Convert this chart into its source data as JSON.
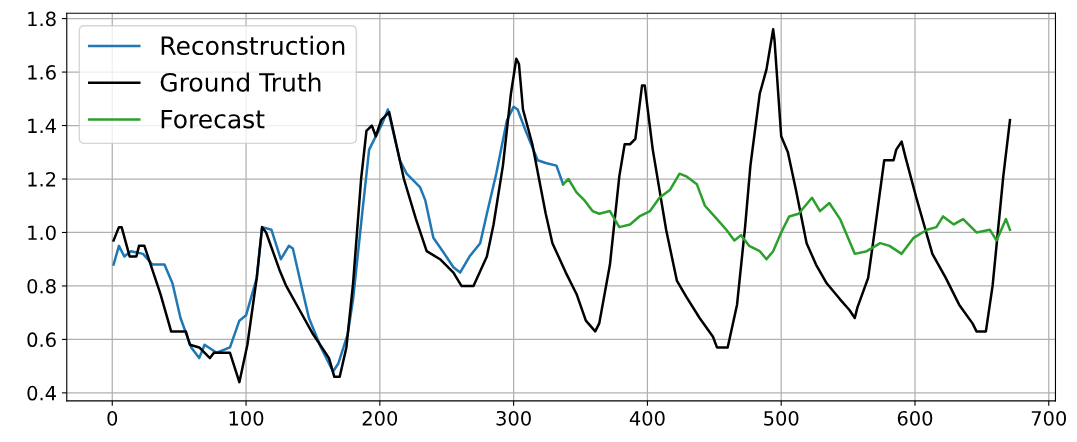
{
  "chart_data": {
    "type": "line",
    "xlim": [
      -34,
      705
    ],
    "ylim": [
      0.37,
      1.82
    ],
    "xticks": [
      0,
      100,
      200,
      300,
      400,
      500,
      600,
      700
    ],
    "yticks": [
      {
        "value": 0.4,
        "label": "0.4"
      },
      {
        "value": 0.6,
        "label": "0.6"
      },
      {
        "value": 0.8,
        "label": "0.8"
      },
      {
        "value": 1.0,
        "label": "1.0"
      },
      {
        "value": 1.2,
        "label": "1.2"
      },
      {
        "value": 1.4,
        "label": "1.4"
      },
      {
        "value": 1.6,
        "label": "1.6"
      },
      {
        "value": 1.8,
        "label": "1.8"
      }
    ],
    "grid": true,
    "legend": "top left",
    "line_style": "solid",
    "series": [
      {
        "name": "Reconstruction",
        "color": "#1f77b4",
        "x": [
          1,
          5,
          9,
          14,
          23,
          30,
          39,
          45,
          51,
          59,
          65,
          69,
          78,
          88,
          95,
          100,
          108,
          112,
          119,
          126,
          132,
          135,
          140,
          147,
          156,
          165,
          169,
          176,
          180,
          187,
          192,
          202,
          206,
          215,
          220,
          230,
          234,
          240,
          247,
          255,
          260,
          267,
          275,
          280,
          287,
          295,
          300,
          303,
          309,
          318,
          324,
          332,
          337
        ],
        "values": [
          0.88,
          0.95,
          0.91,
          0.93,
          0.92,
          0.88,
          0.88,
          0.81,
          0.68,
          0.57,
          0.53,
          0.58,
          0.55,
          0.57,
          0.67,
          0.69,
          0.83,
          1.02,
          1.01,
          0.9,
          0.95,
          0.94,
          0.83,
          0.68,
          0.57,
          0.48,
          0.51,
          0.62,
          0.75,
          1.08,
          1.31,
          1.41,
          1.46,
          1.27,
          1.22,
          1.17,
          1.12,
          0.98,
          0.93,
          0.87,
          0.85,
          0.91,
          0.96,
          1.07,
          1.22,
          1.42,
          1.47,
          1.46,
          1.38,
          1.27,
          1.26,
          1.25,
          1.18
        ]
      },
      {
        "name": "Ground Truth",
        "color": "#000000",
        "x": [
          1,
          5,
          7,
          13,
          18,
          20,
          24,
          36,
          44,
          55,
          58,
          65,
          73,
          76,
          88,
          95,
          101,
          108,
          112,
          115,
          125,
          130,
          140,
          150,
          162,
          166,
          170,
          175,
          180,
          186,
          190,
          194,
          197,
          201,
          207,
          218,
          227,
          235,
          245,
          255,
          261,
          270,
          280,
          285,
          292,
          298,
          302,
          304,
          307,
          314,
          324,
          329,
          339,
          347,
          354,
          361,
          364,
          372,
          379,
          383,
          387,
          391,
          396,
          398,
          404,
          414,
          422,
          429,
          439,
          449,
          452,
          460,
          467,
          473,
          477,
          484,
          489,
          494,
          495,
          500,
          505,
          511,
          519,
          526,
          534,
          544,
          551,
          555,
          557,
          565,
          570,
          577,
          584,
          586,
          590,
          593,
          601,
          613,
          623,
          633,
          643,
          646,
          653,
          658,
          666,
          671
        ],
        "values": [
          0.97,
          1.02,
          1.02,
          0.91,
          0.91,
          0.95,
          0.95,
          0.77,
          0.63,
          0.63,
          0.58,
          0.57,
          0.53,
          0.55,
          0.55,
          0.44,
          0.58,
          0.83,
          1.02,
          1.0,
          0.86,
          0.8,
          0.71,
          0.62,
          0.53,
          0.46,
          0.46,
          0.57,
          0.81,
          1.2,
          1.38,
          1.4,
          1.36,
          1.42,
          1.45,
          1.2,
          1.05,
          0.93,
          0.9,
          0.85,
          0.8,
          0.8,
          0.91,
          1.03,
          1.25,
          1.52,
          1.65,
          1.63,
          1.46,
          1.33,
          1.07,
          0.96,
          0.85,
          0.77,
          0.67,
          0.63,
          0.66,
          0.88,
          1.21,
          1.33,
          1.33,
          1.35,
          1.55,
          1.55,
          1.31,
          1.01,
          0.82,
          0.76,
          0.68,
          0.61,
          0.57,
          0.57,
          0.73,
          1.02,
          1.25,
          1.52,
          1.61,
          1.76,
          1.72,
          1.36,
          1.3,
          1.16,
          0.96,
          0.88,
          0.81,
          0.75,
          0.71,
          0.68,
          0.72,
          0.83,
          1.01,
          1.27,
          1.27,
          1.31,
          1.34,
          1.28,
          1.13,
          0.92,
          0.83,
          0.73,
          0.66,
          0.63,
          0.63,
          0.8,
          1.21,
          1.42
        ]
      },
      {
        "name": "Forecast",
        "color": "#2ca02c",
        "x": [
          337,
          341,
          347,
          353,
          359,
          364,
          372,
          379,
          387,
          394,
          402,
          409,
          417,
          424,
          429,
          437,
          443,
          452,
          459,
          465,
          470,
          476,
          484,
          489,
          494,
          500,
          506,
          513,
          518,
          523,
          529,
          536,
          544,
          555,
          564,
          574,
          581,
          590,
          599,
          609,
          616,
          621,
          629,
          636,
          646,
          656,
          661,
          668,
          671
        ],
        "values": [
          1.18,
          1.2,
          1.15,
          1.12,
          1.08,
          1.07,
          1.08,
          1.02,
          1.03,
          1.06,
          1.08,
          1.13,
          1.16,
          1.22,
          1.21,
          1.18,
          1.1,
          1.05,
          1.01,
          0.97,
          0.99,
          0.95,
          0.93,
          0.9,
          0.93,
          1.0,
          1.06,
          1.07,
          1.1,
          1.13,
          1.08,
          1.11,
          1.05,
          0.92,
          0.93,
          0.96,
          0.95,
          0.92,
          0.98,
          1.01,
          1.02,
          1.06,
          1.03,
          1.05,
          1.0,
          1.01,
          0.97,
          1.05,
          1.01
        ]
      }
    ]
  }
}
